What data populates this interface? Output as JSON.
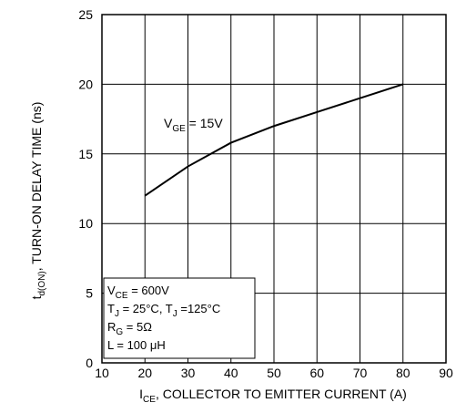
{
  "chart_data": {
    "type": "line",
    "ylabel": [
      {
        "t": "t"
      },
      {
        "sub": "d(ON)"
      },
      {
        "t": ", TURN-ON DELAY TIME (ns)"
      }
    ],
    "xlabel": [
      {
        "t": "I"
      },
      {
        "sub": "CE"
      },
      {
        "t": ", COLLECTOR TO EMITTER CURRENT (A)"
      }
    ],
    "annotation": [
      {
        "t": "V"
      },
      {
        "sub": "GE"
      },
      {
        "t": " = 15V"
      }
    ],
    "conditions": [
      [
        {
          "t": "V"
        },
        {
          "sub": "CE"
        },
        {
          "t": " = 600V"
        }
      ],
      [
        {
          "t": "T"
        },
        {
          "sub": "J"
        },
        {
          "t": " = 25°C, T"
        },
        {
          "sub": "J"
        },
        {
          "t": " =125°C"
        }
      ],
      [
        {
          "t": "R"
        },
        {
          "sub": "G"
        },
        {
          "t": " = 5Ω"
        }
      ],
      [
        {
          "t": "L = 100 μH"
        }
      ]
    ],
    "series": [
      {
        "color": "#000000",
        "x": [
          20,
          30,
          40,
          50,
          60,
          70,
          80
        ],
        "values": [
          12,
          14.1,
          15.8,
          17,
          18,
          19,
          20
        ]
      }
    ],
    "xlim": [
      10,
      90
    ],
    "xticks": [
      10,
      20,
      30,
      40,
      50,
      60,
      70,
      80,
      90
    ],
    "ylim": [
      0,
      25
    ],
    "yticks": [
      0,
      5,
      10,
      15,
      20,
      25
    ],
    "grid": true
  }
}
